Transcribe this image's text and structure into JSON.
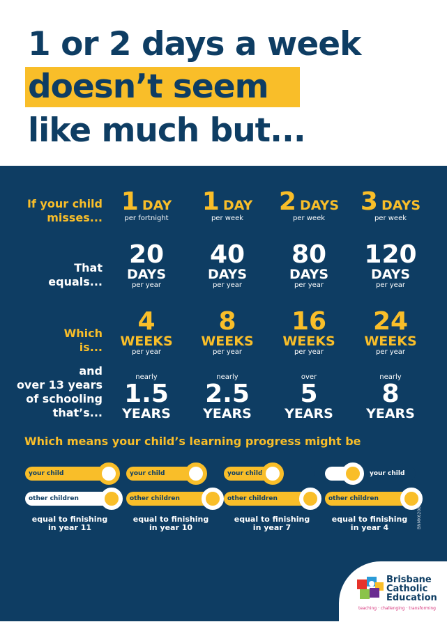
{
  "headline": {
    "line1": "1 or 2 days a week",
    "line2": "doesn’t seem",
    "line3": "like much but..."
  },
  "rows": {
    "misses_label_1": "If your child",
    "misses_label_2": "misses...",
    "equals_label_1": "That",
    "equals_label_2": "equals...",
    "which_label_1": "Which",
    "which_label_2": "is...",
    "over_label_1": "and",
    "over_label_2": "over 13 years",
    "over_label_3": "of schooling",
    "over_label_4": "that’s..."
  },
  "columns": [
    {
      "misses_num": "1",
      "misses_unit": "DAY",
      "misses_freq": "per fortnight",
      "days_num": "20",
      "days_unit": "DAYS",
      "days_per": "per year",
      "weeks_num": "4",
      "weeks_unit": "WEEKS",
      "weeks_per": "per year",
      "years_qual": "nearly",
      "years_num": "1.5",
      "years_unit": "YEARS"
    },
    {
      "misses_num": "1",
      "misses_unit": "DAY",
      "misses_freq": "per week",
      "days_num": "40",
      "days_unit": "DAYS",
      "days_per": "per year",
      "weeks_num": "8",
      "weeks_unit": "WEEKS",
      "weeks_per": "per year",
      "years_qual": "nearly",
      "years_num": "2.5",
      "years_unit": "YEARS"
    },
    {
      "misses_num": "2",
      "misses_unit": "DAYS",
      "misses_freq": "per week",
      "days_num": "80",
      "days_unit": "DAYS",
      "days_per": "per year",
      "weeks_num": "16",
      "weeks_unit": "WEEKS",
      "weeks_per": "per year",
      "years_qual": "over",
      "years_num": "5",
      "years_unit": "YEARS"
    },
    {
      "misses_num": "3",
      "misses_unit": "DAYS",
      "misses_freq": "per week",
      "days_num": "120",
      "days_unit": "DAYS",
      "days_per": "per year",
      "weeks_num": "24",
      "weeks_unit": "WEEKS",
      "weeks_per": "per year",
      "years_qual": "nearly",
      "years_num": "8",
      "years_unit": "YEARS"
    }
  ],
  "progress": {
    "heading": "Which means your child’s learning progress might be",
    "your_child_label": "your child",
    "other_children_label": "other children",
    "items": [
      {
        "caption_1": "equal to finishing",
        "caption_2": "in year 11",
        "your_child_fraction": 0.92,
        "other_children_fraction": 1.0
      },
      {
        "caption_1": "equal to finishing",
        "caption_2": "in year 10",
        "your_child_fraction": 0.77,
        "other_children_fraction": 1.0
      },
      {
        "caption_1": "equal to finishing",
        "caption_2": "in year 7",
        "your_child_fraction": 0.54,
        "other_children_fraction": 1.0
      },
      {
        "caption_1": "equal to finishing",
        "caption_2": "in year 4",
        "your_child_fraction": 0.31,
        "other_children_fraction": 1.0
      }
    ]
  },
  "code": "BNMK6208",
  "logo": {
    "line1": "Brisbane",
    "line2": "Catholic",
    "line3": "Education",
    "tagline": "teaching · challenging · transforming"
  },
  "colors": {
    "navy": "#0e3d63",
    "yellow": "#f9be29",
    "white": "#ffffff"
  }
}
